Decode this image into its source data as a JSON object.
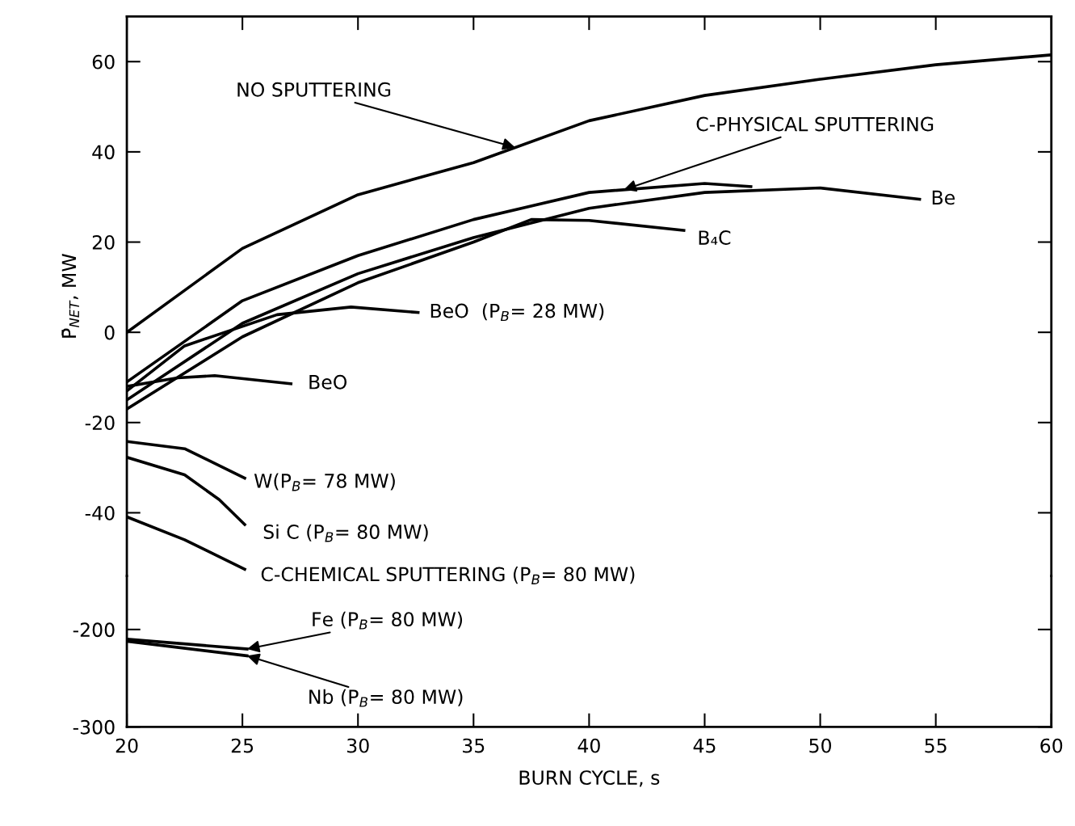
{
  "chart_data": [
    {
      "type": "line",
      "ylabel": "P̄$_{NET}$, MW",
      "xlim": [
        20,
        60
      ],
      "xticks": [
        20,
        25,
        30,
        35,
        40,
        45,
        50,
        55,
        60
      ],
      "ylim": [
        -54,
        70
      ],
      "yticks": [
        -40,
        -20,
        0,
        20,
        40,
        60
      ],
      "tick_labels": "y",
      "grid": false,
      "legend": false,
      "marker": "none",
      "line_style": "solid",
      "series": [
        {
          "color": "#000000",
          "x": [
            20,
            25,
            30,
            35,
            40,
            45,
            50,
            55,
            60
          ],
          "values": [
            0,
            18.6,
            30.5,
            37.6,
            46.9,
            52.5,
            56.1,
            59.3,
            61.5
          ]
        },
        {
          "color": "#000000",
          "x": [
            20,
            25,
            30,
            35,
            40,
            45,
            47
          ],
          "values": [
            -11,
            7,
            17,
            25,
            31,
            33,
            32.3
          ]
        },
        {
          "color": "#000000",
          "x": [
            20,
            25,
            30,
            35,
            40,
            45,
            50,
            54.3
          ],
          "values": [
            -15,
            2,
            13,
            21,
            27.5,
            31,
            32,
            29.5
          ]
        },
        {
          "color": "#000000",
          "x": [
            20,
            25,
            30,
            35,
            37.5,
            40,
            44.1
          ],
          "values": [
            -17,
            -1,
            11,
            20,
            25,
            24.8,
            22.6
          ]
        },
        {
          "color": "#000000",
          "x": [
            20,
            22.5,
            26.5,
            29.7,
            32.6
          ],
          "values": [
            -13,
            -3,
            3.9,
            5.6,
            4.4
          ]
        },
        {
          "color": "#000000",
          "x": [
            20,
            22.2,
            23.8,
            27.1
          ],
          "values": [
            -12,
            -10.1,
            -9.6,
            -11.4
          ]
        },
        {
          "color": "#000000",
          "x": [
            20,
            22.5,
            25.1
          ],
          "values": [
            -24.2,
            -25.8,
            -32.3
          ]
        },
        {
          "color": "#000000",
          "x": [
            20,
            22.5,
            24,
            25.1
          ],
          "values": [
            -27.7,
            -31.6,
            -37.1,
            -42.6
          ]
        },
        {
          "color": "#000000",
          "x": [
            20,
            22.5,
            25.1
          ],
          "values": [
            -40.9,
            -46,
            -52.5
          ]
        }
      ],
      "annotations": [
        {
          "text": "NO SPUTTERING",
          "x": 36.8,
          "y": 41
        },
        {
          "text": "C-PHYSICAL SPUTTERING",
          "x": 41.5,
          "y": 31.6
        },
        {
          "text": "Be",
          "x": 54.3,
          "y": 29.5
        },
        {
          "text": "B₄C",
          "x": 44.1,
          "y": 22.6
        },
        {
          "text": "BeO  (P$_{B}$= 28 MW)",
          "x": 32.6,
          "y": 4.4
        },
        {
          "text": "BeO",
          "x": 27.1,
          "y": -11.4
        },
        {
          "text": "W(P$_{B}$= 78 MW)",
          "x": 25.1,
          "y": -32.3
        },
        {
          "text": "Si C (P$_{B}$= 80 MW)",
          "x": 25.1,
          "y": -42.6
        },
        {
          "text": "C-CHEMICAL SPUTTERING (P$_{B}$= 80 MW)",
          "x": 25.1,
          "y": -52.5
        }
      ]
    },
    {
      "type": "line",
      "xlabel": "BURN CYCLE, s",
      "xlim": [
        20,
        60
      ],
      "xticks": [
        20,
        25,
        30,
        35,
        40,
        45,
        50,
        55,
        60
      ],
      "ylim": [
        -300,
        -145
      ],
      "yticks": [
        -300,
        -200
      ],
      "grid": false,
      "legend": false,
      "marker": "none",
      "line_style": "solid",
      "series": [
        {
          "color": "#000000",
          "x": [
            20,
            25.2
          ],
          "values": [
            -210,
            -220
          ]
        },
        {
          "color": "#000000",
          "x": [
            20,
            25.2
          ],
          "values": [
            -212,
            -227
          ]
        }
      ],
      "annotations": [
        {
          "text": "Fe (P$_{B}$= 80 MW)",
          "x": 25.2,
          "y": -220
        },
        {
          "text": "Nb (P$_{B}$= 80 MW)",
          "x": 25.2,
          "y": -227
        }
      ]
    }
  ]
}
